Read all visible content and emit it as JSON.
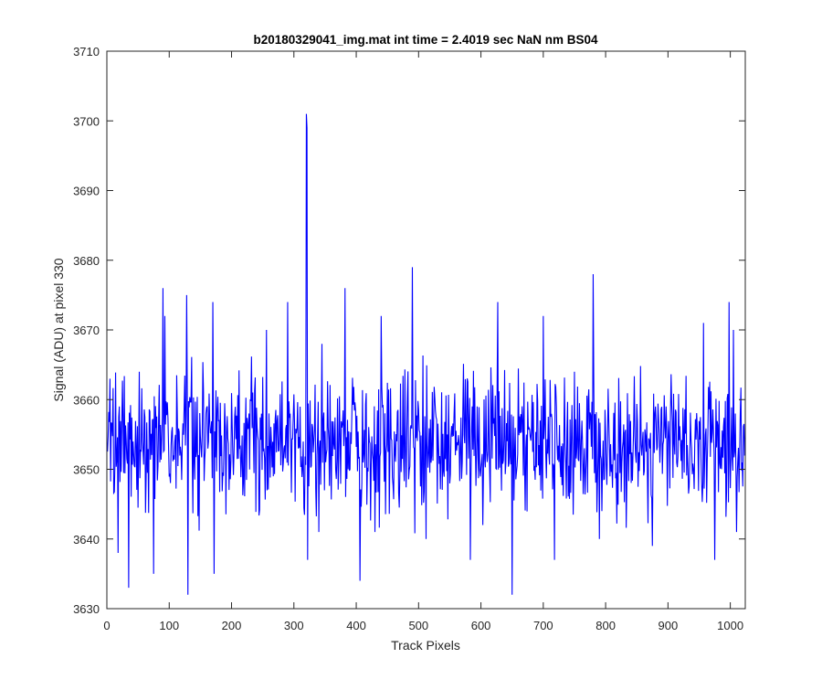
{
  "chart_data": {
    "type": "line",
    "title": "b20180329041_img.mat int time = 2.4019 sec  NaN nm BS04",
    "xlabel": "Track Pixels",
    "ylabel": "Signal (ADU) at pixel 330",
    "xlim": [
      0,
      1024
    ],
    "ylim": [
      3630,
      3710
    ],
    "xticks": [
      0,
      100,
      200,
      300,
      400,
      500,
      600,
      700,
      800,
      900,
      1000
    ],
    "yticks": [
      3630,
      3640,
      3650,
      3660,
      3670,
      3680,
      3690,
      3700,
      3710
    ],
    "grid": false,
    "legend": "none",
    "line_color": "#0000ff",
    "series_description": "Noise trace over pixels 1-1024, mean about 3654 ADU, mostly between 3638 and 3670",
    "n_points": 1024,
    "baseline_mean": 3654,
    "noise_halfrange": 9,
    "seed": 330,
    "notable_points": [
      {
        "x": 5,
        "y": 3663
      },
      {
        "x": 18,
        "y": 3638
      },
      {
        "x": 35,
        "y": 3633
      },
      {
        "x": 52,
        "y": 3664
      },
      {
        "x": 75,
        "y": 3635
      },
      {
        "x": 90,
        "y": 3676
      },
      {
        "x": 93,
        "y": 3672
      },
      {
        "x": 128,
        "y": 3675
      },
      {
        "x": 130,
        "y": 3632
      },
      {
        "x": 170,
        "y": 3674
      },
      {
        "x": 172,
        "y": 3635
      },
      {
        "x": 256,
        "y": 3670
      },
      {
        "x": 290,
        "y": 3674
      },
      {
        "x": 320,
        "y": 3701
      },
      {
        "x": 321,
        "y": 3699
      },
      {
        "x": 322,
        "y": 3637
      },
      {
        "x": 345,
        "y": 3668
      },
      {
        "x": 382,
        "y": 3676
      },
      {
        "x": 406,
        "y": 3634
      },
      {
        "x": 440,
        "y": 3672
      },
      {
        "x": 490,
        "y": 3679
      },
      {
        "x": 512,
        "y": 3640
      },
      {
        "x": 583,
        "y": 3637
      },
      {
        "x": 627,
        "y": 3674
      },
      {
        "x": 650,
        "y": 3632
      },
      {
        "x": 700,
        "y": 3672
      },
      {
        "x": 718,
        "y": 3637
      },
      {
        "x": 780,
        "y": 3678
      },
      {
        "x": 790,
        "y": 3640
      },
      {
        "x": 875,
        "y": 3639
      },
      {
        "x": 957,
        "y": 3671
      },
      {
        "x": 975,
        "y": 3637
      },
      {
        "x": 998,
        "y": 3674
      },
      {
        "x": 1005,
        "y": 3670
      },
      {
        "x": 1010,
        "y": 3641
      }
    ]
  }
}
